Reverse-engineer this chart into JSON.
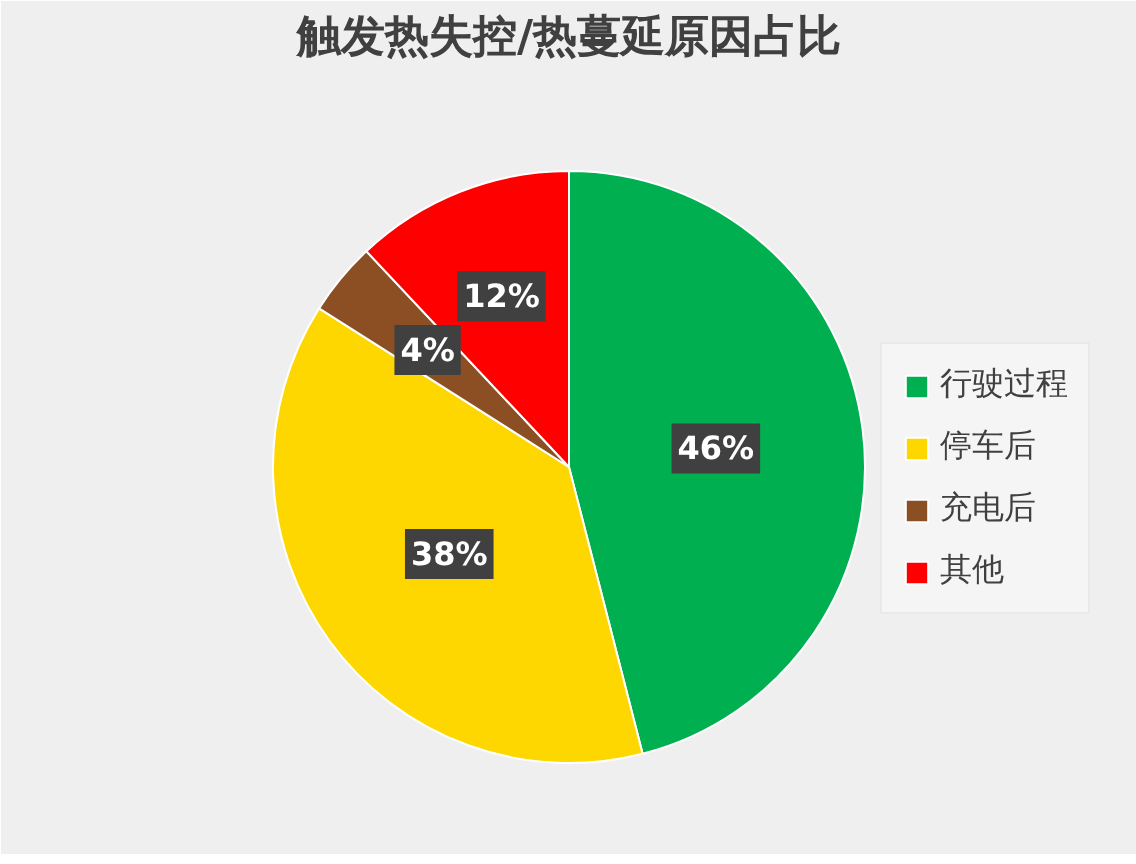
{
  "chart_data": {
    "type": "pie",
    "title": "触发热失控/热蔓延原因占比",
    "categories": [
      "行驶过程",
      "停车后",
      "充电后",
      "其他"
    ],
    "values": [
      46,
      38,
      4,
      12
    ],
    "value_labels": [
      "46%",
      "38%",
      "4%",
      "12%"
    ],
    "colors": [
      "#00b050",
      "#ffd700",
      "#8b4f23",
      "#ff0000"
    ],
    "legend": "right"
  }
}
